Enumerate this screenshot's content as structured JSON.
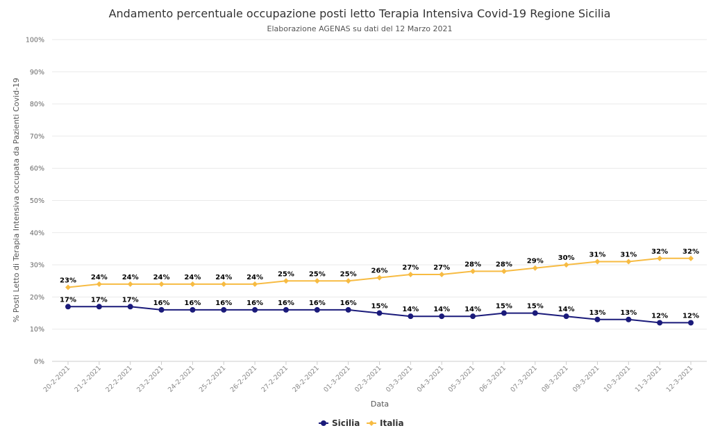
{
  "chart_data": {
    "type": "line",
    "title": "Andamento percentuale occupazione posti letto Terapia Intensiva Covid-19 Regione Sicilia",
    "subtitle": "Elaborazione AGENAS su dati del 12 Marzo 2021",
    "xlabel": "Data",
    "ylabel": "% Posti Letto di Terapia Intensiva occupata da Pazienti Covid-19",
    "ylim": [
      0,
      100
    ],
    "yticks": [
      "0%",
      "10%",
      "20%",
      "30%",
      "40%",
      "50%",
      "60%",
      "70%",
      "80%",
      "90%",
      "100%"
    ],
    "grid": true,
    "legend_position": "bottom-center",
    "categories": [
      "20-2-2021",
      "21-2-2021",
      "22-2-2021",
      "23-2-2021",
      "24-2-2021",
      "25-2-2021",
      "26-2-2021",
      "27-2-2021",
      "28-2-2021",
      "01-3-2021",
      "02-3-2021",
      "03-3-2021",
      "04-3-2021",
      "05-3-2021",
      "06-3-2021",
      "07-3-2021",
      "08-3-2021",
      "09-3-2021",
      "10-3-2021",
      "11-3-2021",
      "12-3-2021"
    ],
    "series": [
      {
        "name": "Sicilia",
        "color": "#1a1a7a",
        "values": [
          17,
          17,
          17,
          16,
          16,
          16,
          16,
          16,
          16,
          16,
          15,
          14,
          14,
          14,
          15,
          15,
          14,
          13,
          13,
          12,
          12
        ]
      },
      {
        "name": "Italia",
        "color": "#f7bb42",
        "values": [
          23,
          24,
          24,
          24,
          24,
          24,
          24,
          25,
          25,
          25,
          26,
          27,
          27,
          28,
          28,
          29,
          30,
          31,
          31,
          32,
          32
        ]
      }
    ]
  }
}
